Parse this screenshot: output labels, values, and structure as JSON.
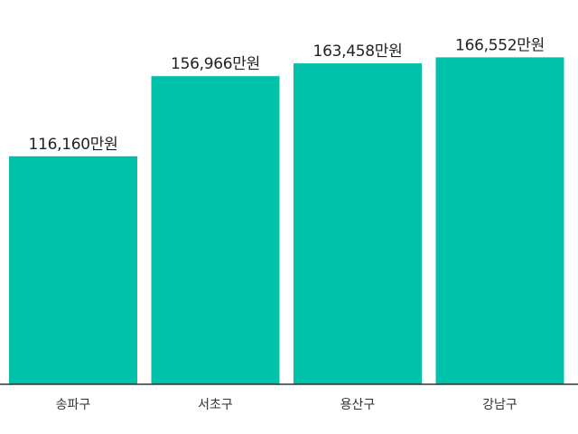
{
  "chart_data": {
    "type": "bar",
    "categories": [
      "송파구",
      "서초구",
      "용산구",
      "강남구"
    ],
    "values": [
      116160,
      156966,
      163458,
      166552
    ],
    "value_labels": [
      "116,160만원",
      "156,966만원",
      "163,458만원",
      "166,552만원"
    ],
    "title": "",
    "xlabel": "",
    "ylabel": "",
    "ylim": [
      0,
      181000
    ],
    "grid": false,
    "legend": "none",
    "colors": {
      "bar": "#00C2A8",
      "axis": "#333333",
      "label": "#222222"
    }
  }
}
